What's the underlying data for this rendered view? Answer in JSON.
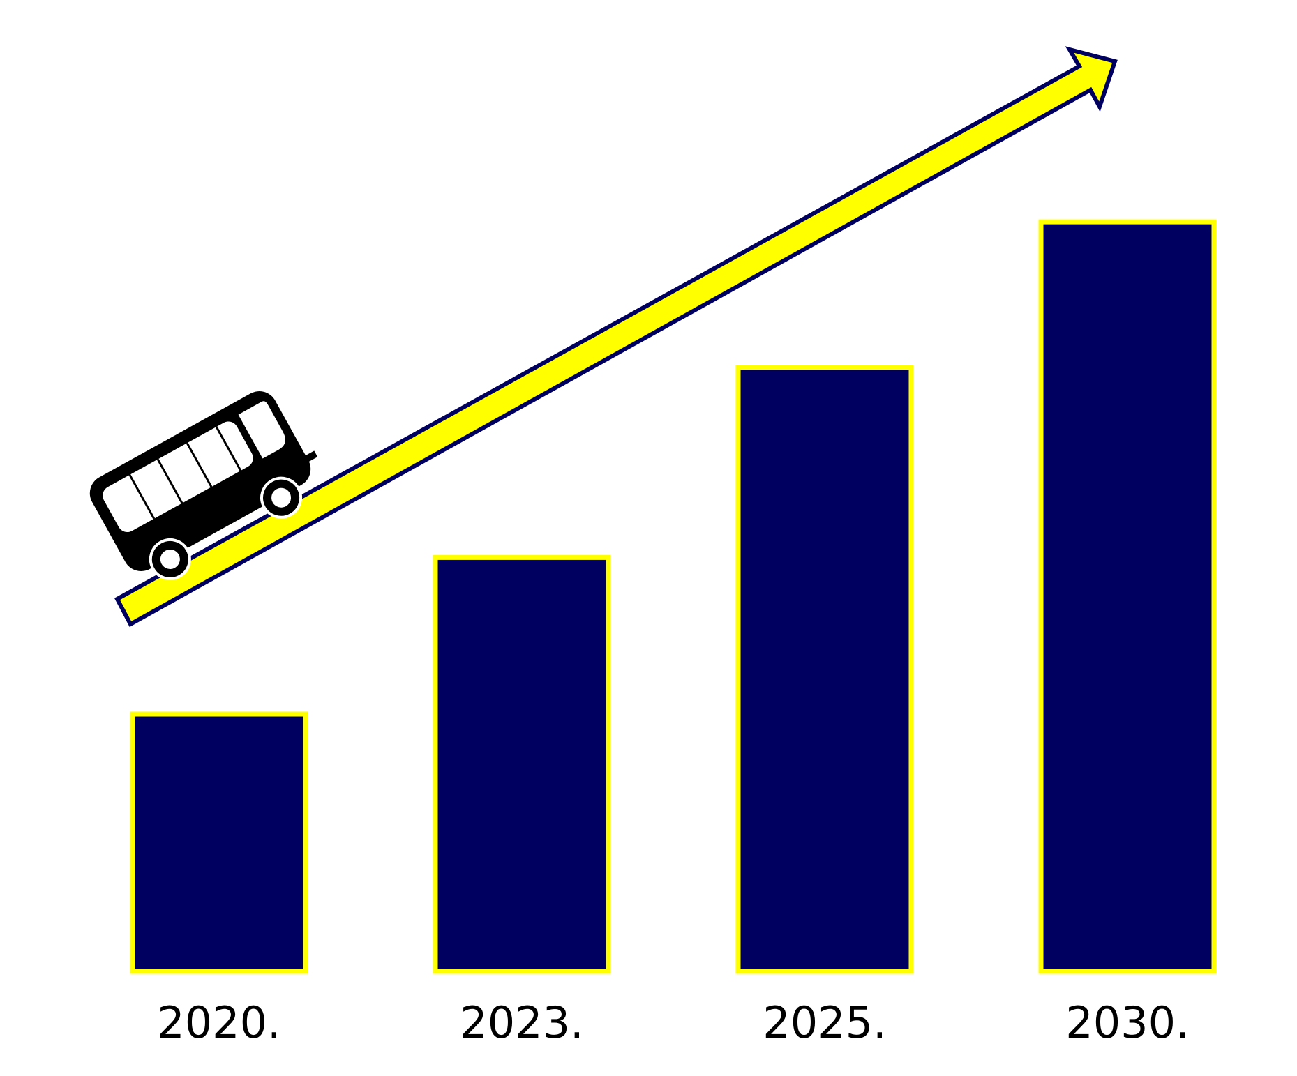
{
  "chart_data": {
    "type": "bar",
    "title": "",
    "xlabel": "",
    "ylabel": "",
    "categories": [
      "2020.",
      "2023.",
      "2025.",
      "2030."
    ],
    "values": [
      23,
      37,
      54,
      67
    ],
    "ylim": [
      0,
      70
    ],
    "grid": false,
    "legend": "none",
    "y_axis_visible": false,
    "bar_fill": "#000060",
    "bar_border": "#ffff00",
    "trend_arrow": {
      "fill": "#ffff00",
      "stroke": "#000060"
    },
    "bus_icon": "bus-icon"
  }
}
